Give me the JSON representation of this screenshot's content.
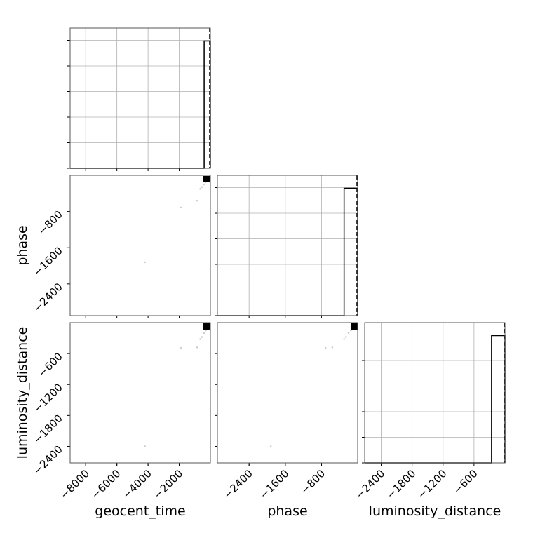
{
  "chart_data": {
    "type": "scatter",
    "subtype": "corner-plot",
    "parameters": [
      {
        "key": "geocent_time",
        "label": "geocent_time",
        "range": [
          -9000,
          0
        ],
        "ticks": [
          -8000,
          -6000,
          -4000,
          -2000
        ],
        "tick_labels": [
          "−8000",
          "−6000",
          "−4000",
          "−2000"
        ]
      },
      {
        "key": "phase",
        "label": "phase",
        "range": [
          -3100,
          0
        ],
        "ticks": [
          -2400,
          -1600,
          -800
        ],
        "tick_labels": [
          "−2400",
          "−1600",
          "−800"
        ]
      },
      {
        "key": "luminosity_distance",
        "label": "luminosity_distance",
        "range": [
          -2720,
          0
        ],
        "ticks": [
          -2400,
          -1800,
          -1200,
          -600
        ],
        "tick_labels": [
          "−2400",
          "−1800",
          "−1200",
          "−600"
        ]
      }
    ],
    "histograms": [
      {
        "param": "geocent_time",
        "peak_bin": [
          -400,
          0
        ],
        "truth": 0
      },
      {
        "param": "phase",
        "peak_bin": [
          -300,
          0
        ],
        "truth": 0
      },
      {
        "param": "luminosity_distance",
        "peak_bin": [
          -260,
          0
        ],
        "truth": 0
      }
    ],
    "samples": {
      "geocent_time": [
        -4200,
        -1900,
        -850,
        -650,
        -550,
        -400,
        -300,
        -200,
        -100,
        -50
      ],
      "phase": [
        -1920,
        -710,
        -560,
        -300,
        -260,
        -200,
        -150,
        -100,
        -60,
        -30
      ],
      "luminosity_distance": [
        -2400,
        -490,
        -480,
        -320,
        -280,
        -200,
        -150,
        -100,
        -60,
        -30
      ]
    },
    "dense_marker": "black square at the maximum of each 2D panel",
    "grid": true,
    "legend": "none"
  }
}
